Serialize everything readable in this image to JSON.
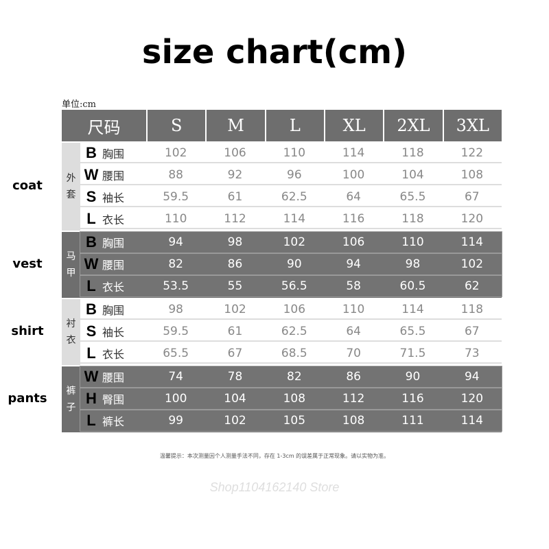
{
  "title": "size chart(cm)",
  "unit": "单位:cm",
  "header": [
    "尺码",
    "S",
    "M",
    "L",
    "XL",
    "2XL",
    "3XL"
  ],
  "groups": [
    {
      "side": "coat",
      "label": "外套",
      "style": "light",
      "rows": [
        {
          "letter": "B",
          "name": "胸围",
          "values": [
            "102",
            "106",
            "110",
            "114",
            "118",
            "122"
          ]
        },
        {
          "letter": "W",
          "name": "腰围",
          "values": [
            "88",
            "92",
            "96",
            "100",
            "104",
            "108"
          ]
        },
        {
          "letter": "S",
          "name": "袖长",
          "values": [
            "59.5",
            "61",
            "62.5",
            "64",
            "65.5",
            "67"
          ]
        },
        {
          "letter": "L",
          "name": "衣长",
          "values": [
            "110",
            "112",
            "114",
            "116",
            "118",
            "120"
          ]
        }
      ]
    },
    {
      "side": "vest",
      "label": "马甲",
      "style": "dark",
      "rows": [
        {
          "letter": "B",
          "name": "胸围",
          "values": [
            "94",
            "98",
            "102",
            "106",
            "110",
            "114"
          ]
        },
        {
          "letter": "W",
          "name": "腰围",
          "values": [
            "82",
            "86",
            "90",
            "94",
            "98",
            "102"
          ]
        },
        {
          "letter": "L",
          "name": "衣长",
          "values": [
            "53.5",
            "55",
            "56.5",
            "58",
            "60.5",
            "62"
          ]
        }
      ]
    },
    {
      "side": "shirt",
      "label": "衬衣",
      "style": "light",
      "rows": [
        {
          "letter": "B",
          "name": "胸围",
          "values": [
            "98",
            "102",
            "106",
            "110",
            "114",
            "118"
          ]
        },
        {
          "letter": "S",
          "name": "袖长",
          "values": [
            "59.5",
            "61",
            "62.5",
            "64",
            "65.5",
            "67"
          ]
        },
        {
          "letter": "L",
          "name": "衣长",
          "values": [
            "65.5",
            "67",
            "68.5",
            "70",
            "71.5",
            "73"
          ]
        }
      ]
    },
    {
      "side": "pants",
      "label": "裤子",
      "style": "dark",
      "rows": [
        {
          "letter": "W",
          "name": "腰围",
          "values": [
            "74",
            "78",
            "82",
            "86",
            "90",
            "94"
          ]
        },
        {
          "letter": "H",
          "name": "臀围",
          "values": [
            "100",
            "104",
            "108",
            "112",
            "116",
            "120"
          ]
        },
        {
          "letter": "L",
          "name": "裤长",
          "values": [
            "99",
            "102",
            "105",
            "108",
            "111",
            "114"
          ]
        }
      ]
    }
  ],
  "watermark": "Shop1104162140 Store",
  "note": "温馨提示：本次测量因个人测量手法不同，存在 1-3cm 的误差属于正常现象。请以实物为准。"
}
